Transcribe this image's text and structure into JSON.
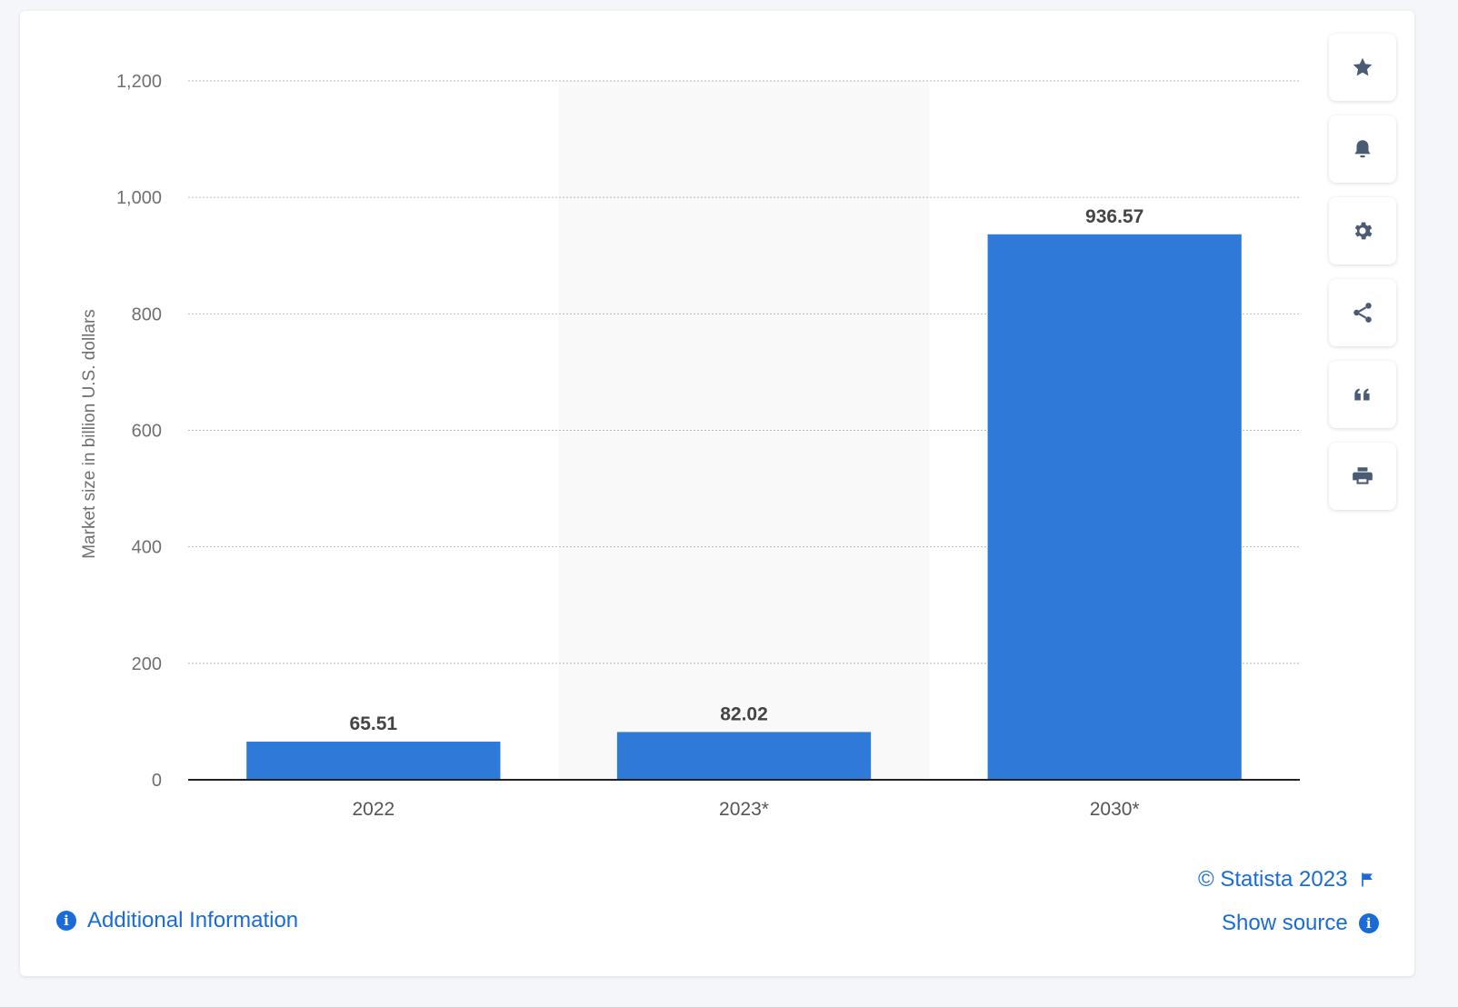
{
  "chart_data": {
    "type": "bar",
    "categories": [
      "2022",
      "2023*",
      "2030*"
    ],
    "values": [
      65.51,
      82.02,
      936.57
    ],
    "value_labels": [
      "65.51",
      "82.02",
      "936.57"
    ],
    "title": "",
    "xlabel": "",
    "ylabel": "Market size in billion U.S. dollars",
    "ylim": [
      0,
      1200
    ],
    "yticks": [
      0,
      200,
      400,
      600,
      800,
      1000,
      1200
    ],
    "ytick_labels": [
      "0",
      "200",
      "400",
      "600",
      "800",
      "1,000",
      "1,200"
    ],
    "highlighted_category": "2023*",
    "grid": true,
    "bar_color": "#2f7ad9"
  },
  "toolbar": {
    "icons": [
      "star-icon",
      "bell-icon",
      "gear-icon",
      "share-icon",
      "quote-icon",
      "print-icon"
    ]
  },
  "footer": {
    "copyright": "© Statista 2023",
    "show_source": "Show source",
    "additional_info": "Additional Information"
  },
  "colors": {
    "accent": "#1a6bd8",
    "bar": "#2f7ad9",
    "icon": "#4a5c73"
  }
}
